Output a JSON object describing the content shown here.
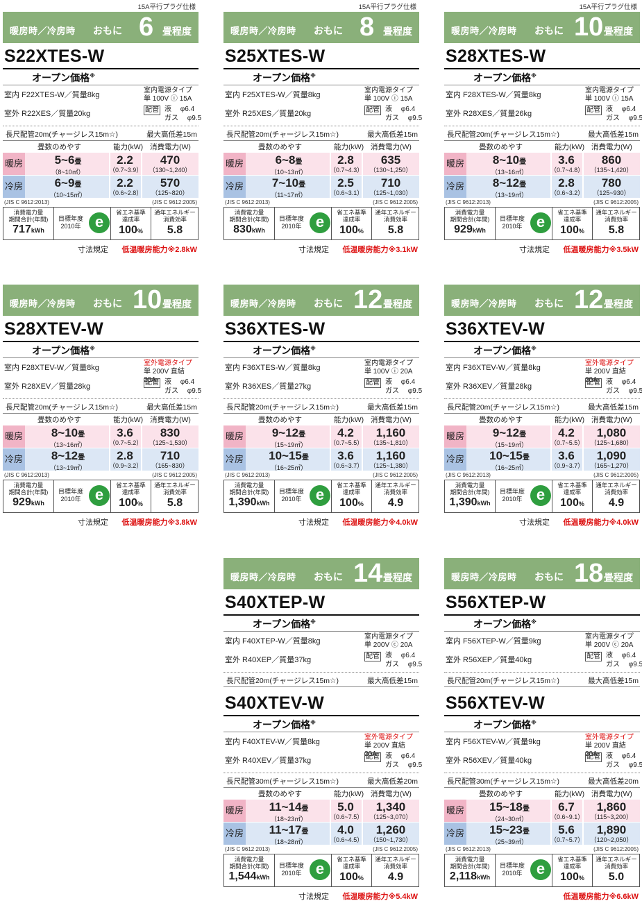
{
  "labels": {
    "header_left": "暖房時／冷房時",
    "header_mid": "おもに",
    "header_suffix": "畳程度",
    "price": "オープン価格",
    "price_mark": "※",
    "pipe_box": "配管",
    "liquid": "液",
    "gas": "ガス",
    "col_tatami": "畳数のめやす",
    "col_capacity": "能力(kW)",
    "col_power": "消費電力(W)",
    "heat": "暖房",
    "cool": "冷房",
    "jis_left": "(JIS C 9612:2013)",
    "jis_right": "(JIS C 9612:2005)",
    "annual_title": "消費電力量\n期間合計(年間)",
    "target_year": "目標年度\n2010年",
    "eco_icon": "e",
    "achieve_title": "省エネ基準\n達成率",
    "apf_title": "通年エネルギー\n消費効率",
    "size": "寸法規定",
    "lowtemp_prefix": "低温暖房能力※",
    "unit_kwh": "kWh",
    "unit_pct": "%"
  },
  "cards": [
    {
      "plug": "15A平行プラグ仕様",
      "tatami": "6",
      "models": [
        {
          "name": "S22XTES-W",
          "indoor": "室内 F22XTES-W／質量8kg",
          "outdoor": "室外 R22XES／質量20kg",
          "ptype1": "室内電源タイプ",
          "ptype1_red": false,
          "ptype2": "単 100V ⓘ 15A",
          "liq": "φ6.4",
          "gas": "φ9.5",
          "long": "長尺配管20m(チャージレス15m☆)",
          "maxh": "最大高低差15m"
        }
      ],
      "heat": {
        "tatami": "5~6",
        "tatami_unit": "畳",
        "tatami_range": "（8~10㎡）",
        "cap": "2.2",
        "cap_range": "（0.7~3.9）",
        "pow": "470",
        "pow_range": "（130~1,240）"
      },
      "cool": {
        "tatami": "6~9",
        "tatami_unit": "畳",
        "tatami_range": "（10~15㎡）",
        "cap": "2.2",
        "cap_range": "（0.6~2.8）",
        "pow": "570",
        "pow_range": "（125~820）"
      },
      "annual": "717",
      "achieve": "100",
      "apf": "5.8",
      "size": true,
      "lowtemp": "2.8kW"
    },
    {
      "plug": "15A平行プラグ仕様",
      "tatami": "8",
      "models": [
        {
          "name": "S25XTES-W",
          "indoor": "室内 F25XTES-W／質量8kg",
          "outdoor": "室外 R25XES／質量20kg",
          "ptype1": "室内電源タイプ",
          "ptype1_red": false,
          "ptype2": "単 100V ⓘ 15A",
          "liq": "φ6.4",
          "gas": "φ9.5",
          "long": "長尺配管20m(チャージレス15m☆)",
          "maxh": "最大高低差15m"
        }
      ],
      "heat": {
        "tatami": "6~8",
        "tatami_unit": "畳",
        "tatami_range": "（10~13㎡）",
        "cap": "2.8",
        "cap_range": "（0.7~4.3）",
        "pow": "635",
        "pow_range": "（130~1,250）"
      },
      "cool": {
        "tatami": "7~10",
        "tatami_unit": "畳",
        "tatami_range": "（11~17㎡）",
        "cap": "2.5",
        "cap_range": "（0.6~3.1）",
        "pow": "710",
        "pow_range": "（125~1,030）"
      },
      "annual": "830",
      "achieve": "100",
      "apf": "5.8",
      "size": true,
      "lowtemp": "3.1kW"
    },
    {
      "plug": "15A平行プラグ仕様",
      "tatami": "10",
      "models": [
        {
          "name": "S28XTES-W",
          "indoor": "室内 F28XTES-W／質量8kg",
          "outdoor": "室外 R28XES／質量26kg",
          "ptype1": "室内電源タイプ",
          "ptype1_red": false,
          "ptype2": "単 100V ⓘ 15A",
          "liq": "φ6.4",
          "gas": "φ9.5",
          "long": "長尺配管20m(チャージレス15m☆)",
          "maxh": "最大高低差15m"
        }
      ],
      "heat": {
        "tatami": "8~10",
        "tatami_unit": "畳",
        "tatami_range": "（13~16㎡）",
        "cap": "3.6",
        "cap_range": "（0.7~4.8）",
        "pow": "860",
        "pow_range": "（135~1,420）"
      },
      "cool": {
        "tatami": "8~12",
        "tatami_unit": "畳",
        "tatami_range": "（13~19㎡）",
        "cap": "2.8",
        "cap_range": "（0.6~3.2）",
        "pow": "780",
        "pow_range": "（125~930）"
      },
      "annual": "929",
      "achieve": "100",
      "apf": "5.8",
      "size": true,
      "lowtemp": "3.5kW"
    },
    {
      "plug": "",
      "tatami": "10",
      "models": [
        {
          "name": "S28XTEV-W",
          "indoor": "室内 F28XTEV-W／質量8kg",
          "outdoor": "室外 R28XEV／質量28kg",
          "ptype1": "室外電源タイプ",
          "ptype1_red": true,
          "ptype2": "単 200V 直結 20A",
          "liq": "φ6.4",
          "gas": "φ9.5",
          "long": "長尺配管20m(チャージレス15m☆)",
          "maxh": "最大高低差15m"
        }
      ],
      "heat": {
        "tatami": "8~10",
        "tatami_unit": "畳",
        "tatami_range": "（13~16㎡）",
        "cap": "3.6",
        "cap_range": "（0.7~5.2）",
        "pow": "830",
        "pow_range": "（125~1,530）"
      },
      "cool": {
        "tatami": "8~12",
        "tatami_unit": "畳",
        "tatami_range": "（13~19㎡）",
        "cap": "2.8",
        "cap_range": "（0.9~3.2）",
        "pow": "710",
        "pow_range": "（165~830）"
      },
      "annual": "929",
      "achieve": "100",
      "apf": "5.8",
      "size": true,
      "lowtemp": "3.8kW"
    },
    {
      "plug": "",
      "tatami": "12",
      "models": [
        {
          "name": "S36XTES-W",
          "indoor": "室内 F36XTES-W／質量8kg",
          "outdoor": "室外 R36XES／質量27kg",
          "ptype1": "室内電源タイプ",
          "ptype1_red": false,
          "ptype2": "単 100V ⓘ 20A",
          "liq": "φ6.4",
          "gas": "φ9.5",
          "long": "長尺配管20m(チャージレス15m☆)",
          "maxh": "最大高低差15m"
        }
      ],
      "heat": {
        "tatami": "9~12",
        "tatami_unit": "畳",
        "tatami_range": "（15~19㎡）",
        "cap": "4.2",
        "cap_range": "（0.7~5.5）",
        "pow": "1,160",
        "pow_range": "（135~1,810）"
      },
      "cool": {
        "tatami": "10~15",
        "tatami_unit": "畳",
        "tatami_range": "（16~25㎡）",
        "cap": "3.6",
        "cap_range": "（0.6~3.7）",
        "pow": "1,160",
        "pow_range": "（125~1,380）"
      },
      "annual": "1,390",
      "achieve": "100",
      "apf": "4.9",
      "size": true,
      "lowtemp": "4.0kW"
    },
    {
      "plug": "",
      "tatami": "12",
      "models": [
        {
          "name": "S36XTEV-W",
          "indoor": "室内 F36XTEV-W／質量8kg",
          "outdoor": "室外 R36XEV／質量28kg",
          "ptype1": "室外電源タイプ",
          "ptype1_red": true,
          "ptype2": "単 200V 直結 20A",
          "liq": "φ6.4",
          "gas": "φ9.5",
          "long": "長尺配管20m(チャージレス15m☆)",
          "maxh": "最大高低差15m"
        }
      ],
      "heat": {
        "tatami": "9~12",
        "tatami_unit": "畳",
        "tatami_range": "（15~19㎡）",
        "cap": "4.2",
        "cap_range": "（0.7~5.5）",
        "pow": "1,080",
        "pow_range": "（125~1,680）"
      },
      "cool": {
        "tatami": "10~15",
        "tatami_unit": "畳",
        "tatami_range": "（16~25㎡）",
        "cap": "3.6",
        "cap_range": "（0.9~3.7）",
        "pow": "1,090",
        "pow_range": "（165~1,270）"
      },
      "annual": "1,390",
      "achieve": "100",
      "apf": "4.9",
      "size": true,
      "lowtemp": "4.0kW"
    },
    {
      "plug": "",
      "tatami": "14",
      "models": [
        {
          "name": "S40XTEP-W",
          "indoor": "室内 F40XTEP-W／質量8kg",
          "outdoor": "室外 R40XEP／質量37kg",
          "ptype1": "室内電源タイプ",
          "ptype1_red": false,
          "ptype2": "単 200V ⓒ 20A",
          "liq": "φ6.4",
          "gas": "φ9.5",
          "long": "長尺配管20m(チャージレス15m☆)",
          "maxh": "最大高低差15m"
        },
        {
          "name": "S40XTEV-W",
          "indoor": "室内 F40XTEV-W／質量8kg",
          "outdoor": "室外 R40XEV／質量37kg",
          "ptype1": "室外電源タイプ",
          "ptype1_red": true,
          "ptype2": "単 200V 直結 20A",
          "liq": "φ6.4",
          "gas": "φ9.5",
          "long": "長尺配管30m(チャージレス15m☆)",
          "maxh": "最大高低差20m"
        }
      ],
      "heat": {
        "tatami": "11~14",
        "tatami_unit": "畳",
        "tatami_range": "（18~23㎡）",
        "cap": "5.0",
        "cap_range": "（0.6~7.5）",
        "pow": "1,340",
        "pow_range": "（125~3,070）"
      },
      "cool": {
        "tatami": "11~17",
        "tatami_unit": "畳",
        "tatami_range": "（18~28㎡）",
        "cap": "4.0",
        "cap_range": "（0.6~4.5）",
        "pow": "1,260",
        "pow_range": "（150~1,730）"
      },
      "annual": "1,544",
      "achieve": "100",
      "apf": "4.9",
      "size": true,
      "lowtemp": "5.4kW"
    },
    {
      "plug": "",
      "tatami": "18",
      "models": [
        {
          "name": "S56XTEP-W",
          "indoor": "室内 F56XTEP-W／質量9kg",
          "outdoor": "室外 R56XEP／質量40kg",
          "ptype1": "室内電源タイプ",
          "ptype1_red": false,
          "ptype2": "単 200V ⓒ 20A",
          "liq": "φ6.4",
          "gas": "φ9.5",
          "long": "長尺配管20m(チャージレス15m☆)",
          "maxh": "最大高低差15m"
        },
        {
          "name": "S56XTEV-W",
          "indoor": "室内 F56XTEV-W／質量9kg",
          "outdoor": "室外 R56XEV／質量40kg",
          "ptype1": "室外電源タイプ",
          "ptype1_red": true,
          "ptype2": "単 200V 直結 20A",
          "liq": "φ6.4",
          "gas": "φ9.5",
          "long": "長尺配管30m(チャージレス15m☆)",
          "maxh": "最大高低差20m"
        }
      ],
      "heat": {
        "tatami": "15~18",
        "tatami_unit": "畳",
        "tatami_range": "（24~30㎡）",
        "cap": "6.7",
        "cap_range": "（0.6~9.1）",
        "pow": "1,860",
        "pow_range": "（115~3,200）"
      },
      "cool": {
        "tatami": "15~23",
        "tatami_unit": "畳",
        "tatami_range": "（25~39㎡）",
        "cap": "5.6",
        "cap_range": "（0.7~5.7）",
        "pow": "1,890",
        "pow_range": "（120~2,050）"
      },
      "annual": "2,118",
      "achieve": "100",
      "apf": "5.0",
      "size": false,
      "lowtemp": "6.6kW"
    }
  ]
}
